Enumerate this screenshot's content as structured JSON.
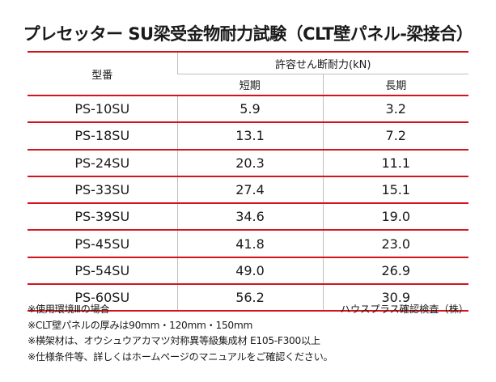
{
  "title": "プレセッター SU梁受金物耐力試験（CLT壁パネル-梁接合）",
  "table": {
    "model_header": "型番",
    "capacity_header": "許容せん断耐力(kN)",
    "short_header": "短期",
    "long_header": "長期",
    "rows": [
      {
        "model": "PS-10SU",
        "short": "5.9",
        "long": "3.2"
      },
      {
        "model": "PS-18SU",
        "short": "13.1",
        "long": "7.2"
      },
      {
        "model": "PS-24SU",
        "short": "20.3",
        "long": "11.1"
      },
      {
        "model": "PS-33SU",
        "short": "27.4",
        "long": "15.1"
      },
      {
        "model": "PS-39SU",
        "short": "34.6",
        "long": "19.0"
      },
      {
        "model": "PS-45SU",
        "short": "41.8",
        "long": "23.0"
      },
      {
        "model": "PS-54SU",
        "short": "49.0",
        "long": "26.9"
      },
      {
        "model": "PS-60SU",
        "short": "56.2",
        "long": "30.9"
      }
    ]
  },
  "colors": {
    "rule": "#d3141e",
    "grid": "#c0c0c0"
  },
  "notes": {
    "line1": "※使用環境Ⅲの場合",
    "tester": "ハウスプラス確認検査（株）",
    "line2": "※CLT壁パネルの厚みは90mm・120mm・150mm",
    "line3": "※横架材は、オウシュウアカマツ対称異等級集成材 E105-F300以上",
    "line4": "※仕様条件等、詳しくはホームページのマニュアルをご確認ください。"
  }
}
